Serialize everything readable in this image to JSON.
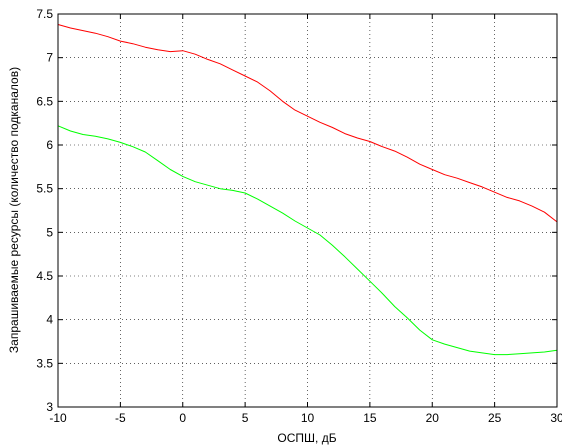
{
  "chart_data": {
    "type": "line",
    "title": "",
    "xlabel": "ОСПШ, дБ",
    "ylabel": "Запрашиваемые ресурсы (количество подканалов)",
    "xlim": [
      -10,
      30
    ],
    "ylim": [
      3,
      7.5
    ],
    "grid": true,
    "x_ticks": [
      -10,
      -5,
      0,
      5,
      10,
      15,
      20,
      25,
      30
    ],
    "y_ticks": [
      3,
      3.5,
      4,
      4.5,
      5,
      5.5,
      6,
      6.5,
      7,
      7.5
    ],
    "x_tick_labels": [
      "-10",
      "-5",
      "0",
      "5",
      "10",
      "15",
      "20",
      "25",
      "30"
    ],
    "y_tick_labels": [
      "3",
      "3.5",
      "4",
      "4.5",
      "5",
      "5.5",
      "6",
      "6.5",
      "7",
      "7.5"
    ],
    "x": [
      -10,
      -9,
      -8,
      -7,
      -6,
      -5,
      -4,
      -3,
      -2,
      -1,
      0,
      1,
      2,
      3,
      4,
      5,
      6,
      7,
      8,
      9,
      10,
      11,
      12,
      13,
      14,
      15,
      16,
      17,
      18,
      19,
      20,
      21,
      22,
      23,
      24,
      25,
      26,
      27,
      28,
      29,
      30
    ],
    "series": [
      {
        "color": "#ff0000",
        "values": [
          7.38,
          7.34,
          7.31,
          7.28,
          7.24,
          7.19,
          7.16,
          7.12,
          7.09,
          7.07,
          7.08,
          7.04,
          6.98,
          6.93,
          6.86,
          6.79,
          6.72,
          6.62,
          6.5,
          6.4,
          6.33,
          6.26,
          6.2,
          6.13,
          6.08,
          6.04,
          5.98,
          5.93,
          5.86,
          5.78,
          5.72,
          5.66,
          5.62,
          5.57,
          5.52,
          5.46,
          5.4,
          5.36,
          5.3,
          5.23,
          5.12
        ]
      },
      {
        "color": "#00ff00",
        "values": [
          6.22,
          6.16,
          6.12,
          6.1,
          6.07,
          6.03,
          5.98,
          5.92,
          5.82,
          5.72,
          5.64,
          5.58,
          5.54,
          5.5,
          5.48,
          5.45,
          5.38,
          5.3,
          5.22,
          5.13,
          5.05,
          4.97,
          4.85,
          4.72,
          4.58,
          4.44,
          4.3,
          4.15,
          4.02,
          3.88,
          3.77,
          3.72,
          3.68,
          3.64,
          3.62,
          3.6,
          3.6,
          3.61,
          3.62,
          3.63,
          3.65
        ]
      }
    ]
  }
}
